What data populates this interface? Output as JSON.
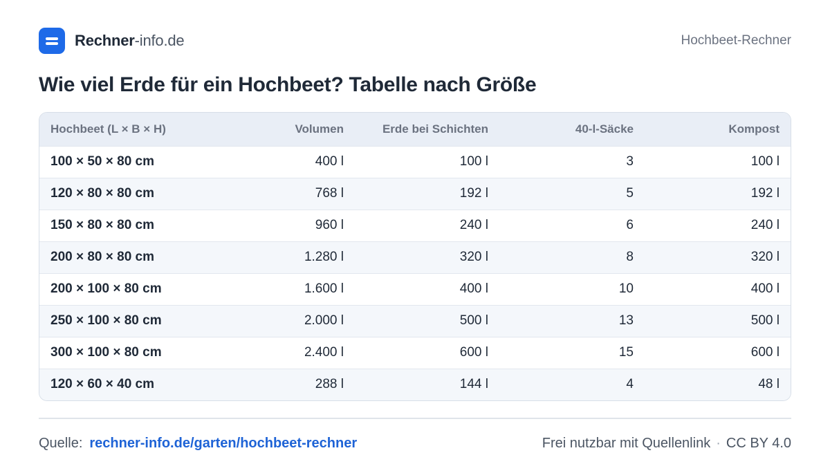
{
  "header": {
    "brand_bold": "Rechner",
    "brand_light": "-info.de",
    "page_label": "Hochbeet-Rechner"
  },
  "title": "Wie viel Erde für ein Hochbeet? Tabelle nach Größe",
  "table": {
    "columns": [
      "Hochbeet (L × B × H)",
      "Volumen",
      "Erde bei Schichten",
      "40-l-Säcke",
      "Kompost"
    ],
    "rows": [
      [
        "100 × 50 × 80 cm",
        "400 l",
        "100 l",
        "3",
        "100 l"
      ],
      [
        "120 × 80 × 80 cm",
        "768 l",
        "192 l",
        "5",
        "192 l"
      ],
      [
        "150 × 80 × 80 cm",
        "960 l",
        "240 l",
        "6",
        "240 l"
      ],
      [
        "200 × 80 × 80 cm",
        "1.280 l",
        "320 l",
        "8",
        "320 l"
      ],
      [
        "200 × 100 × 80 cm",
        "1.600 l",
        "400 l",
        "10",
        "400 l"
      ],
      [
        "250 × 100 × 80 cm",
        "2.000 l",
        "500 l",
        "13",
        "500 l"
      ],
      [
        "300 × 100 × 80 cm",
        "2.400 l",
        "600 l",
        "15",
        "600 l"
      ],
      [
        "120 × 60 × 40 cm",
        "288 l",
        "144 l",
        "4",
        "48 l"
      ]
    ]
  },
  "footer": {
    "source_label": "Quelle:",
    "source_link": "rechner-info.de/garten/hochbeet-rechner",
    "license_text": "Frei nutzbar mit Quellenlink",
    "separator": "·",
    "license": "CC BY 4.0"
  },
  "colors": {
    "accent": "#1e6ae8",
    "link": "#1e63d6",
    "header_bg": "#e9eef6",
    "row_alt_bg": "#f4f7fb"
  }
}
